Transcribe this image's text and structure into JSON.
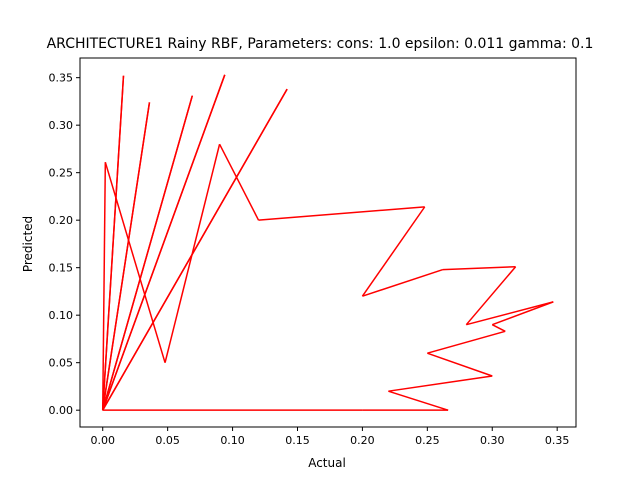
{
  "chart_data": {
    "type": "line",
    "title": "ARCHITECTURE1 Rainy RBF, Parameters: cons: 1.0 epsilon: 0.011 gamma: 0.1",
    "xlabel": "Actual",
    "ylabel": "Predicted",
    "xlim": [
      -0.0175,
      0.3645
    ],
    "ylim": [
      -0.0177,
      0.3707
    ],
    "xticks": [
      "0.00",
      "0.05",
      "0.10",
      "0.15",
      "0.20",
      "0.25",
      "0.30",
      "0.35"
    ],
    "yticks": [
      "0.00",
      "0.05",
      "0.10",
      "0.15",
      "0.20",
      "0.25",
      "0.30",
      "0.35"
    ],
    "grid": false,
    "legend": "none",
    "series": [
      {
        "color": "#ff0000",
        "points": [
          [
            0.0,
            0.0
          ],
          [
            0.016,
            0.352
          ],
          [
            0.0,
            0.0
          ],
          [
            0.036,
            0.324
          ],
          [
            0.0,
            0.0
          ],
          [
            0.069,
            0.331
          ],
          [
            0.0,
            0.0
          ],
          [
            0.094,
            0.353
          ],
          [
            0.0,
            0.0
          ],
          [
            0.142,
            0.338
          ],
          [
            0.0,
            0.0
          ],
          [
            0.002,
            0.261
          ],
          [
            0.048,
            0.05
          ],
          [
            0.09,
            0.28
          ],
          [
            0.12,
            0.2
          ],
          [
            0.248,
            0.214
          ],
          [
            0.2,
            0.12
          ],
          [
            0.262,
            0.148
          ],
          [
            0.318,
            0.151
          ],
          [
            0.28,
            0.09
          ],
          [
            0.347,
            0.114
          ],
          [
            0.3,
            0.09
          ],
          [
            0.31,
            0.083
          ],
          [
            0.25,
            0.06
          ],
          [
            0.3,
            0.036
          ],
          [
            0.22,
            0.02
          ],
          [
            0.266,
            0.0
          ],
          [
            0.2,
            0.0
          ],
          [
            0.0,
            0.0
          ]
        ]
      }
    ]
  }
}
